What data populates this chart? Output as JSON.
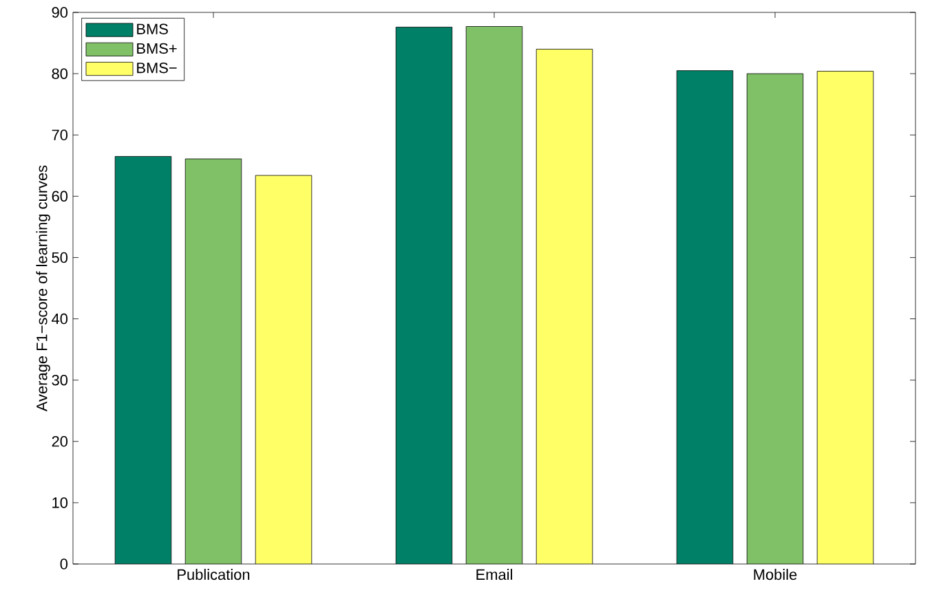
{
  "chart_data": {
    "type": "bar",
    "ylabel": "Average F1−score of learning curves",
    "categories": [
      "Publication",
      "Email",
      "Mobile"
    ],
    "series": [
      {
        "name": "BMS",
        "color": "#008066",
        "values": [
          66.5,
          87.6,
          80.5
        ]
      },
      {
        "name": "BMS+",
        "color": "#80c066",
        "values": [
          66.1,
          87.7,
          80.0
        ]
      },
      {
        "name": "BMS−",
        "color": "#ffff66",
        "values": [
          63.4,
          84.0,
          80.4
        ]
      }
    ],
    "ylim": [
      0,
      90
    ],
    "yticks": [
      0,
      10,
      20,
      30,
      40,
      50,
      60,
      70,
      80,
      90
    ],
    "grid": false,
    "legend": "top left"
  }
}
